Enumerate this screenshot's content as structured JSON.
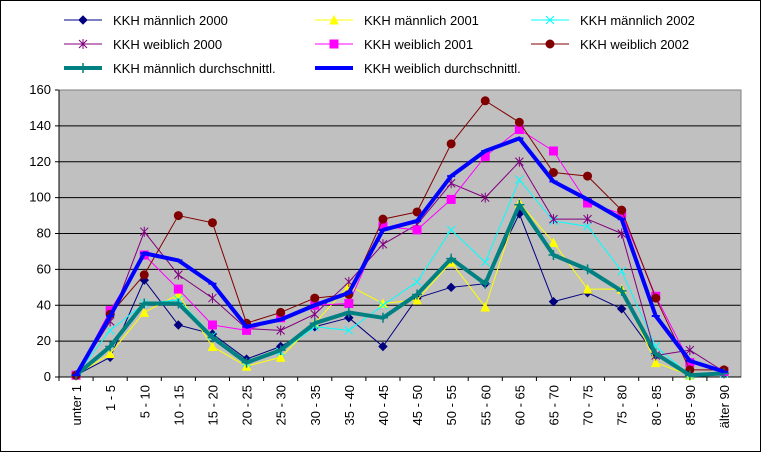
{
  "chart_data": {
    "type": "line",
    "title": "",
    "xlabel": "",
    "ylabel": "",
    "ylim": [
      0,
      160
    ],
    "yticks": [
      0,
      20,
      40,
      60,
      80,
      100,
      120,
      140,
      160
    ],
    "grid": true,
    "legend_position": "top",
    "plot_background": "#c0c0c0",
    "categories": [
      "unter 1",
      "1 - 5",
      "5 - 10",
      "10 - 15",
      "15 - 20",
      "20 - 25",
      "25 - 30",
      "30 - 35",
      "35 - 40",
      "40 - 45",
      "45 - 50",
      "50 - 55",
      "55 - 60",
      "60 - 65",
      "65 - 70",
      "70 - 75",
      "75 - 80",
      "80 - 85",
      "85 - 90",
      "älter 90"
    ],
    "series": [
      {
        "name": "KKH männlich 2000",
        "color": "#000080",
        "marker": "diamond",
        "width": 1,
        "values": [
          1,
          11,
          54,
          29,
          24,
          10,
          17,
          28,
          33,
          17,
          44,
          50,
          52,
          91,
          42,
          47,
          38,
          12,
          1,
          2
        ]
      },
      {
        "name": "KKH männlich 2001",
        "color": "#ffff00",
        "marker": "triangle",
        "width": 1,
        "values": [
          1,
          13,
          36,
          46,
          17,
          6,
          11,
          30,
          51,
          41,
          43,
          64,
          39,
          97,
          75,
          49,
          49,
          8,
          1,
          3
        ]
      },
      {
        "name": "KKH männlich 2002",
        "color": "#00ffff",
        "marker": "x",
        "width": 1,
        "values": [
          1,
          26,
          41,
          43,
          23,
          8,
          14,
          28,
          26,
          40,
          53,
          82,
          64,
          110,
          87,
          84,
          59,
          17,
          1,
          2
        ]
      },
      {
        "name": "KKH weiblich 2000",
        "color": "#800080",
        "marker": "star",
        "width": 1,
        "values": [
          1,
          31,
          81,
          57,
          44,
          27,
          26,
          35,
          53,
          74,
          85,
          108,
          100,
          120,
          88,
          88,
          80,
          12,
          15,
          3
        ]
      },
      {
        "name": "KKH weiblich 2001",
        "color": "#ff00ff",
        "marker": "square",
        "width": 1,
        "values": [
          1,
          37,
          68,
          49,
          29,
          26,
          33,
          40,
          41,
          84,
          82,
          99,
          123,
          138,
          126,
          97,
          91,
          45,
          8,
          3
        ]
      },
      {
        "name": "KKH weiblich 2002",
        "color": "#800000",
        "marker": "circle",
        "width": 1,
        "values": [
          1,
          35,
          57,
          90,
          86,
          30,
          36,
          44,
          46,
          88,
          92,
          130,
          154,
          142,
          114,
          112,
          93,
          44,
          4,
          4
        ]
      },
      {
        "name": "KKH männlich durchschnittl.",
        "color": "#008080",
        "marker": "plus",
        "width": 4,
        "values": [
          1,
          17,
          41,
          41,
          22,
          8,
          15,
          30,
          36,
          33,
          46,
          66,
          52,
          96,
          68,
          60,
          48,
          13,
          1,
          2
        ]
      },
      {
        "name": "KKH weiblich durchschnittl.",
        "color": "#0000ff",
        "marker": "dash",
        "width": 4,
        "values": [
          1,
          34,
          69,
          65,
          52,
          28,
          32,
          40,
          47,
          82,
          87,
          112,
          126,
          133,
          109,
          99,
          88,
          34,
          9,
          3
        ]
      }
    ]
  }
}
